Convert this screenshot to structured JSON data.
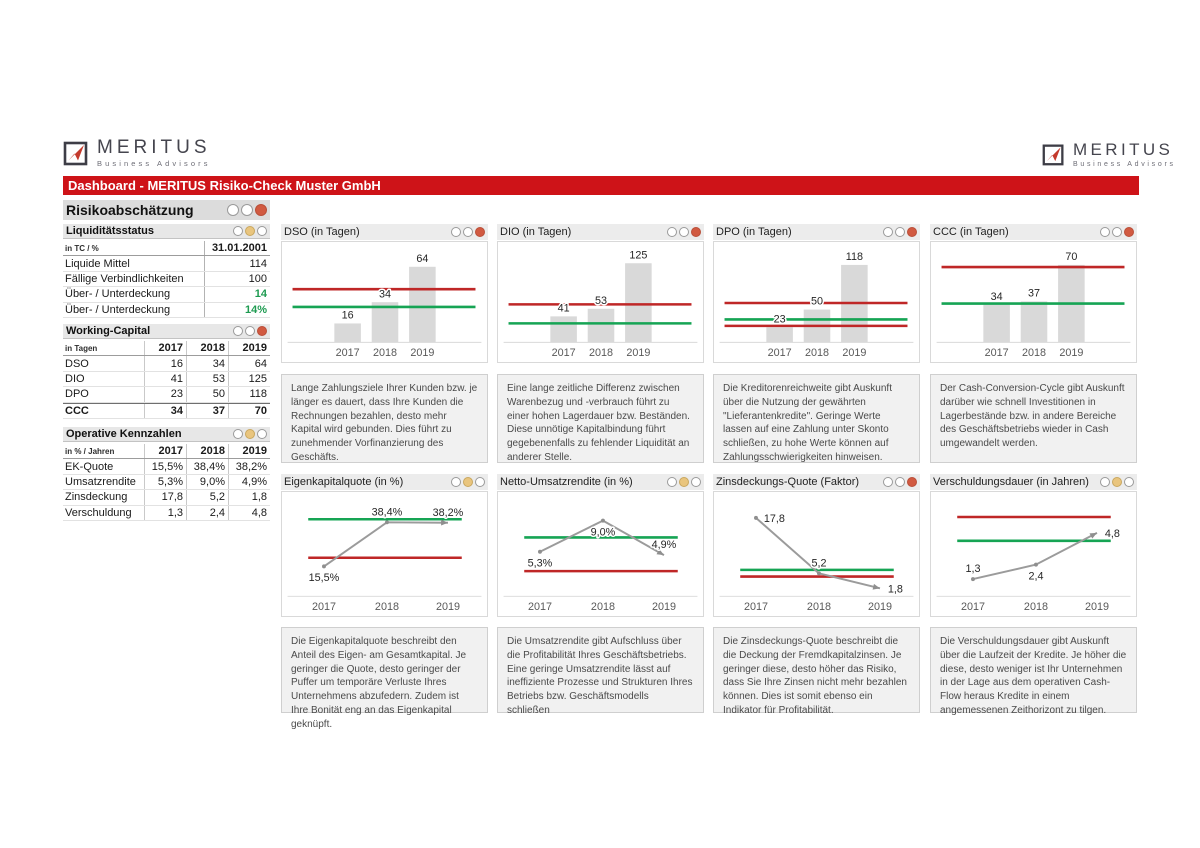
{
  "header": {
    "logo": {
      "name": "MERITUS",
      "subtitle": "Business Advisors"
    },
    "title": "Dashboard - MERITUS Risiko-Check Muster GmbH"
  },
  "colors": {
    "accent_red": "#ce1318",
    "ref_red": "#bf2727",
    "ref_green": "#16a454",
    "bar": "#d9d9d9",
    "line": "#9b9b9b",
    "light_red": "#d15a41",
    "light_yellow": "#e9c57e",
    "value_green": "#1e9b51"
  },
  "sidebar": {
    "title": {
      "label": "Risikoabschätzung",
      "lights": [
        "empty",
        "empty",
        "red"
      ]
    },
    "liquiditaet": {
      "label": "Liquiditätsstatus",
      "lights": [
        "empty",
        "yellow",
        "empty"
      ],
      "unit_label": "in TC / %",
      "date": "31.01.2001",
      "rows": [
        {
          "label": "Liquide Mittel",
          "value": "114",
          "color": "default"
        },
        {
          "label": "Fällige Verbindlichkeiten",
          "value": "100",
          "color": "default"
        },
        {
          "label": "Über- / Unterdeckung",
          "value": "14",
          "color": "green"
        },
        {
          "label": "Über- / Unterdeckung",
          "value": "14%",
          "color": "green"
        }
      ]
    },
    "working_capital": {
      "label": "Working-Capital",
      "lights": [
        "empty",
        "empty",
        "red"
      ],
      "unit_label": "in Tagen",
      "years": [
        "2017",
        "2018",
        "2019"
      ],
      "rows": [
        {
          "label": "DSO",
          "values": [
            "16",
            "34",
            "64"
          ],
          "bold": false
        },
        {
          "label": "DIO",
          "values": [
            "41",
            "53",
            "125"
          ],
          "bold": false
        },
        {
          "label": "DPO",
          "values": [
            "23",
            "50",
            "118"
          ],
          "bold": false
        },
        {
          "label": "CCC",
          "values": [
            "34",
            "37",
            "70"
          ],
          "bold": true
        }
      ]
    },
    "operative": {
      "label": "Operative Kennzahlen",
      "lights": [
        "empty",
        "yellow",
        "empty"
      ],
      "unit_label": "in % / Jahren",
      "years": [
        "2017",
        "2018",
        "2019"
      ],
      "rows": [
        {
          "label": "EK-Quote",
          "values": [
            "15,5%",
            "38,4%",
            "38,2%"
          ],
          "bold": false
        },
        {
          "label": "Umsatzrendite",
          "values": [
            "5,3%",
            "9,0%",
            "4,9%"
          ],
          "bold": false
        },
        {
          "label": "Zinsdeckung",
          "values": [
            "17,8",
            "5,2",
            "1,8"
          ],
          "bold": false
        },
        {
          "label": "Verschuldung",
          "values": [
            "1,3",
            "2,4",
            "4,8"
          ],
          "bold": false
        }
      ]
    }
  },
  "panels": [
    {
      "title": "DSO (in Tagen)",
      "lights": [
        "empty",
        "empty",
        "red"
      ],
      "description": "Lange Zahlungsziele Ihrer Kunden bzw. je länger es dauert, dass Ihre Kunden die Rechnungen bezahlen, desto mehr Kapital wird gebunden. Dies führt zu zunehmender Vorfinanzierung des Geschäfts."
    },
    {
      "title": "DIO (in Tagen)",
      "lights": [
        "empty",
        "empty",
        "red"
      ],
      "description": "Eine lange zeitliche Differenz zwischen Warenbezug und -verbrauch führt zu einer hohen Lagerdauer bzw. Beständen. Diese unnötige Kapitalbindung führt gegebenenfalls zu fehlender Liquidität an anderer Stelle."
    },
    {
      "title": "DPO (in Tagen)",
      "lights": [
        "empty",
        "empty",
        "red"
      ],
      "description": "Die Kreditorenreichweite gibt Auskunft über die Nutzung der gewährten \"Lieferantenkredite\". Geringe Werte lassen auf eine Zahlung unter Skonto schließen, zu hohe Werte können auf Zahlungsschwierigkeiten hinweisen."
    },
    {
      "title": "CCC (in Tagen)",
      "lights": [
        "empty",
        "empty",
        "red"
      ],
      "description": "Der Cash-Conversion-Cycle gibt Auskunft darüber wie schnell Investitionen in Lagerbestände bzw. in andere Bereiche des Geschäftsbetriebs wieder in Cash umgewandelt werden."
    },
    {
      "title": "Eigenkapitalquote (in %)",
      "lights": [
        "empty",
        "yellow",
        "empty"
      ],
      "description": "Die Eigenkapitalquote beschreibt den Anteil des Eigen- am Gesamtkapital. Je geringer die Quote, desto geringer der Puffer um temporäre Verluste Ihres Unternehmens abzufedern. Zudem ist Ihre Bonität eng an das Eigenkapital geknüpft."
    },
    {
      "title": "Netto-Umsatzrendite (in %)",
      "lights": [
        "empty",
        "yellow",
        "empty"
      ],
      "description": "Die Umsatzrendite gibt Aufschluss über die Profitabilität Ihres Geschäftsbetriebs. Eine geringe Umsatzrendite lässt auf ineffiziente Prozesse und Strukturen Ihres Betriebs bzw. Geschäftsmodells schließen"
    },
    {
      "title": "Zinsdeckungs-Quote (Faktor)",
      "lights": [
        "empty",
        "empty",
        "red"
      ],
      "description": "Die Zinsdeckungs-Quote beschreibt die die Deckung der Fremdkapitalzinsen. Je geringer diese, desto höher das Risiko, dass Sie Ihre Zinsen nicht mehr bezahlen können. Dies ist somit ebenso ein Indikator für Profitabilität."
    },
    {
      "title": "Verschuldungsdauer (in Jahren)",
      "lights": [
        "empty",
        "yellow",
        "empty"
      ],
      "description": "Die Verschuldungsdauer gibt Auskunft über die Laufzeit der Kredite. Je höher die diese, desto weniger ist Ihr Unternehmen in der Lage aus dem operativen Cash-Flow heraus Kredite in einem angemessenen Zeithorizont zu tilgen."
    }
  ],
  "chart_data": [
    {
      "type": "bar",
      "title": "DSO (in Tagen)",
      "categories": [
        "2017",
        "2018",
        "2019"
      ],
      "values": [
        16,
        34,
        64
      ],
      "labels": [
        "16",
        "34",
        "64"
      ],
      "ylim": [
        0,
        75
      ],
      "refs": [
        {
          "color": "red",
          "value": 45
        },
        {
          "color": "green",
          "value": 30
        }
      ]
    },
    {
      "type": "bar",
      "title": "DIO (in Tagen)",
      "categories": [
        "2017",
        "2018",
        "2019"
      ],
      "values": [
        41,
        53,
        125
      ],
      "labels": [
        "41",
        "53",
        "125"
      ],
      "ylim": [
        0,
        140
      ],
      "refs": [
        {
          "color": "red",
          "value": 60
        },
        {
          "color": "green",
          "value": 30
        }
      ]
    },
    {
      "type": "bar",
      "title": "DPO (in Tagen)",
      "categories": [
        "2017",
        "2018",
        "2019"
      ],
      "values": [
        23,
        50,
        118
      ],
      "labels": [
        "23",
        "50",
        "118"
      ],
      "ylim": [
        0,
        135
      ],
      "refs": [
        {
          "color": "red",
          "value": 60
        },
        {
          "color": "green",
          "value": 35
        },
        {
          "color": "red",
          "value": 25
        }
      ]
    },
    {
      "type": "bar",
      "title": "CCC (in Tagen)",
      "categories": [
        "2017",
        "2018",
        "2019"
      ],
      "values": [
        34,
        37,
        70
      ],
      "labels": [
        "34",
        "37",
        "70"
      ],
      "ylim": [
        0,
        80
      ],
      "refs": [
        {
          "color": "red",
          "value": 68
        },
        {
          "color": "green",
          "value": 35
        }
      ]
    },
    {
      "type": "line",
      "title": "Eigenkapitalquote (in %)",
      "categories": [
        "2017",
        "2018",
        "2019"
      ],
      "values": [
        15.5,
        38.4,
        38.2
      ],
      "labels": [
        "15,5%",
        "38,4%",
        "38,2%"
      ],
      "label_pos": [
        "below",
        "above",
        "above"
      ],
      "ylim": [
        0,
        48
      ],
      "refs": [
        {
          "color": "green",
          "value": 40
        },
        {
          "color": "red",
          "value": 20
        }
      ]
    },
    {
      "type": "line",
      "title": "Netto-Umsatzrendite (in %)",
      "categories": [
        "2017",
        "2018",
        "2019"
      ],
      "values": [
        5.3,
        9.0,
        4.9
      ],
      "labels": [
        "5,3%",
        "9,0%",
        "4,9%"
      ],
      "label_pos": [
        "below",
        "below",
        "above"
      ],
      "ylim": [
        0,
        11
      ],
      "refs": [
        {
          "color": "green",
          "value": 7
        },
        {
          "color": "red",
          "value": 3
        }
      ]
    },
    {
      "type": "line",
      "title": "Zinsdeckungs-Quote (Faktor)",
      "categories": [
        "2017",
        "2018",
        "2019"
      ],
      "values": [
        17.8,
        5.2,
        1.8
      ],
      "labels": [
        "17,8",
        "5,2",
        "1,8"
      ],
      "label_pos": [
        "right",
        "above",
        "right"
      ],
      "ylim": [
        0,
        21
      ],
      "refs": [
        {
          "color": "green",
          "value": 6
        },
        {
          "color": "red",
          "value": 4.5
        }
      ]
    },
    {
      "type": "line",
      "title": "Verschuldungsdauer (in Jahren)",
      "categories": [
        "2017",
        "2018",
        "2019"
      ],
      "values": [
        1.3,
        2.4,
        4.8
      ],
      "labels": [
        "1,3",
        "2,4",
        "4,8"
      ],
      "label_pos": [
        "above",
        "below",
        "right"
      ],
      "ylim": [
        0,
        7
      ],
      "refs": [
        {
          "color": "red",
          "value": 6
        },
        {
          "color": "green",
          "value": 4.2
        }
      ]
    }
  ]
}
